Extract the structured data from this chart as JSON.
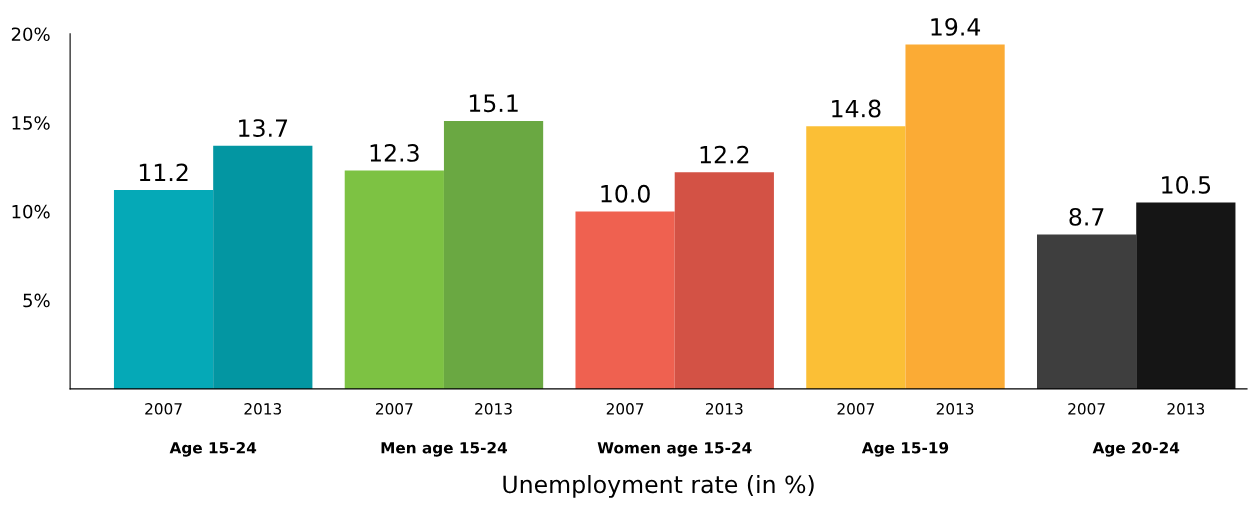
{
  "chart_data": {
    "type": "bar",
    "xlabel": "Unemployment rate (in %)",
    "categories": [
      "Age 15-24",
      "Men age 15-24",
      "Women age 15-24",
      "Age 15-19",
      "Age 20-24"
    ],
    "series": [
      {
        "name": "2007",
        "colors": [
          "#05a9b7",
          "#7dc243",
          "#ef6150",
          "#fbbf36",
          "#3e3e3e"
        ],
        "values": [
          11.2,
          12.3,
          10.0,
          14.8,
          8.7
        ],
        "value_labels": [
          "11.2",
          "12.3",
          "10.0",
          "14.8",
          "8.7"
        ]
      },
      {
        "name": "2013",
        "colors": [
          "#0396a2",
          "#6aa842",
          "#d35245",
          "#fbab35",
          "#151515"
        ],
        "values": [
          13.7,
          15.1,
          12.2,
          19.4,
          10.5
        ],
        "value_labels": [
          "13.7",
          "15.1",
          "12.2",
          "19.4",
          "10.5"
        ]
      }
    ],
    "ylim": [
      0,
      20
    ],
    "yticks": [
      {
        "value": 5,
        "label": "5%"
      },
      {
        "value": 10,
        "label": "10%"
      },
      {
        "value": 15,
        "label": "15%"
      },
      {
        "value": 20,
        "label": "20%"
      }
    ],
    "grid": false,
    "legend": false
  }
}
